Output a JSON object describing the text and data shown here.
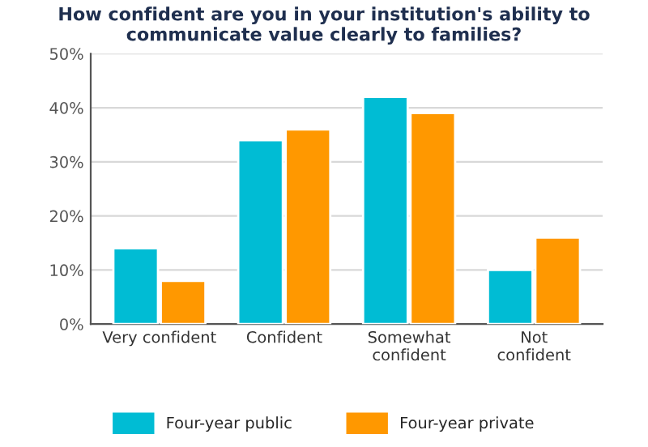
{
  "chart_data": {
    "type": "bar",
    "title": "How confident are you in your institution's ability to\ncommunicate value clearly to families?",
    "categories": [
      "Very confident",
      "Confident",
      "Somewhat\nconfident",
      "Not\nconfident"
    ],
    "series": [
      {
        "name": "Four-year public",
        "color": "#00bcd4",
        "values": [
          14,
          34,
          42,
          10
        ]
      },
      {
        "name": "Four-year private",
        "color": "#ff9800",
        "values": [
          8,
          36,
          39,
          16
        ]
      }
    ],
    "ylim": [
      0,
      50
    ],
    "yticks": [
      {
        "value": 0,
        "label": "0%"
      },
      {
        "value": 10,
        "label": "10%"
      },
      {
        "value": 20,
        "label": "20%"
      },
      {
        "value": 30,
        "label": "30%"
      },
      {
        "value": 40,
        "label": "40%"
      },
      {
        "value": 50,
        "label": "50%"
      }
    ],
    "grid": "y",
    "legend": "bottom"
  }
}
